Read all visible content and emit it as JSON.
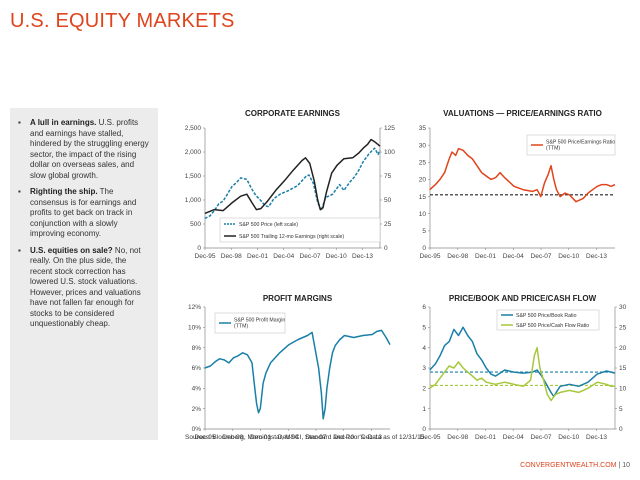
{
  "page": {
    "title": "U.S. EQUITY MARKETS",
    "source": "Sources: Bloomberg, Morningstar, MSCI, Standard and Poor's. Data as of 12/31/15.",
    "brand": "CONVERGENTWEALTH.COM",
    "page_number": "| 10"
  },
  "sidebar": {
    "bullets": [
      {
        "head": "A lull in earnings.",
        "body": " U.S. profits and earnings have stalled, hindered by the struggling energy sector, the impact of the rising dollar on overseas sales, and slow global growth."
      },
      {
        "head": "Righting the ship.",
        "body": " The consensus is for earnings and profits to get back on track in conjunction with a slowly improving economy."
      },
      {
        "head": "U.S. equities on sale?",
        "body": " No, not really. On the plus side, the recent stock correction has lowered U.S. stock valuations. However, prices and valuations have not fallen far enough for stocks to be considered unquestionably cheap."
      }
    ]
  },
  "colors": {
    "accent": "#e0441c",
    "blue": "#1a7fa8",
    "black": "#222222",
    "green": "#a6c83a"
  },
  "chart_data": [
    {
      "id": "corporate-earnings",
      "type": "line",
      "title": "CORPORATE EARNINGS",
      "x_labels": [
        "Dec-95",
        "Dec-98",
        "Dec-01",
        "Dec-04",
        "Dec-07",
        "Dec-10",
        "Dec-13"
      ],
      "x_range": [
        1995.92,
        2015.92
      ],
      "ylim": [
        0,
        2500
      ],
      "yticks": [
        "0",
        "500",
        "1,000",
        "1,500",
        "2,000",
        "2,500"
      ],
      "y2lim": [
        0,
        125
      ],
      "y2ticks": [
        "0",
        "25",
        "50",
        "75",
        "100",
        "125"
      ],
      "series": [
        {
          "name": "S&P 500 Price (left scale)",
          "axis": "left",
          "style": "dashed",
          "color": "#1a7fa8",
          "x": [
            1995.9,
            1996.5,
            1997.0,
            1997.5,
            1998.0,
            1998.5,
            1999.0,
            1999.5,
            2000.0,
            2000.7,
            2001.2,
            2001.7,
            2002.3,
            2002.8,
            2003.2,
            2003.8,
            2004.5,
            2005.5,
            2006.5,
            2007.5,
            2007.8,
            2008.3,
            2008.8,
            2009.2,
            2009.7,
            2010.5,
            2011.3,
            2011.8,
            2012.5,
            2013.0,
            2013.5,
            2014.0,
            2014.7,
            2015.3,
            2015.7,
            2015.92
          ],
          "y": [
            615,
            670,
            780,
            920,
            980,
            1130,
            1280,
            1360,
            1460,
            1430,
            1250,
            1100,
            990,
            880,
            860,
            1030,
            1120,
            1200,
            1300,
            1500,
            1520,
            1350,
            950,
            780,
            1050,
            1120,
            1320,
            1200,
            1380,
            1480,
            1620,
            1800,
            1970,
            2080,
            1950,
            2044
          ]
        },
        {
          "name": "S&P 500 Trailing 12-mo Earnings (right scale)",
          "axis": "right",
          "style": "solid",
          "color": "#222222",
          "x": [
            1995.9,
            1997.0,
            1998.0,
            1999.0,
            2000.0,
            2000.7,
            2001.3,
            2001.8,
            2002.3,
            2003.0,
            2004.0,
            2005.0,
            2006.0,
            2007.0,
            2007.4,
            2007.9,
            2008.4,
            2008.8,
            2009.1,
            2009.4,
            2009.8,
            2010.4,
            2011.0,
            2011.8,
            2012.8,
            2013.5,
            2014.0,
            2014.5,
            2014.9,
            2015.4,
            2015.92
          ],
          "y": [
            36,
            40,
            39,
            47,
            54,
            56,
            47,
            40,
            41,
            48,
            60,
            70,
            81,
            91,
            94,
            88,
            70,
            50,
            40,
            42,
            58,
            78,
            86,
            93,
            94,
            99,
            104,
            108,
            113,
            110,
            106
          ]
        }
      ],
      "legend": "bottom-center"
    },
    {
      "id": "valuations",
      "type": "line",
      "title": "VALUATIONS — PRICE/EARNINGS RATIO",
      "x_labels": [
        "Dec-95",
        "Dec-98",
        "Dec-01",
        "Dec-04",
        "Dec-07",
        "Dec-10",
        "Dec-13"
      ],
      "x_range": [
        1995.92,
        2015.92
      ],
      "ylim": [
        0,
        35
      ],
      "yticks": [
        "0",
        "5",
        "10",
        "15",
        "20",
        "25",
        "30",
        "35"
      ],
      "reference_line": {
        "value": 15.5,
        "style": "dashed",
        "color": "#222222"
      },
      "series": [
        {
          "name": "S&P 500 Price/Earnings Ratio (TTM)",
          "color": "#e0441c",
          "x": [
            1995.9,
            1996.5,
            1997.0,
            1997.5,
            1998.0,
            1998.3,
            1998.7,
            1999.0,
            1999.5,
            2000.0,
            2000.5,
            2001.0,
            2001.5,
            2002.0,
            2002.5,
            2003.0,
            2003.5,
            2004.0,
            2005.0,
            2006.0,
            2007.0,
            2007.5,
            2007.9,
            2008.3,
            2008.7,
            2009.0,
            2009.3,
            2009.6,
            2010.0,
            2010.5,
            2011.0,
            2011.7,
            2012.5,
            2013.0,
            2013.5,
            2014.0,
            2014.5,
            2015.0,
            2015.5,
            2015.92
          ],
          "y": [
            17,
            18.5,
            20,
            22,
            26,
            28,
            27,
            29,
            28.5,
            27,
            26,
            24,
            22,
            21,
            20,
            20.5,
            22,
            20.5,
            18,
            17,
            16.5,
            17,
            15,
            19,
            21.5,
            24,
            20,
            17,
            15,
            16,
            15.5,
            13.5,
            14.5,
            16,
            17,
            18,
            18.5,
            18.5,
            18,
            18.5
          ]
        }
      ],
      "legend": "top-right"
    },
    {
      "id": "profit-margins",
      "type": "line",
      "title": "PROFIT MARGINS",
      "x_labels": [
        "Dec-95",
        "Dec-98",
        "Dec-01",
        "Dec-04",
        "Dec-07",
        "Dec-10",
        "Dec-13"
      ],
      "x_range": [
        1995.92,
        2015.92
      ],
      "ylim": [
        0,
        12
      ],
      "yticks": [
        "0%",
        "2%",
        "4%",
        "6%",
        "8%",
        "10%",
        "12%"
      ],
      "series": [
        {
          "name": "S&P 500 Profit Margin (TTM)",
          "color": "#1a7fa8",
          "x": [
            1995.9,
            1996.5,
            1997.0,
            1997.5,
            1998.0,
            1998.5,
            1999.0,
            1999.5,
            2000.0,
            2000.5,
            2001.0,
            2001.3,
            2001.5,
            2001.7,
            2001.9,
            2002.2,
            2002.5,
            2003.0,
            2004.0,
            2005.0,
            2006.0,
            2007.0,
            2007.5,
            2007.8,
            2008.2,
            2008.5,
            2008.7,
            2008.9,
            2009.1,
            2009.4,
            2009.7,
            2010.0,
            2010.5,
            2011.0,
            2012.0,
            2013.0,
            2014.0,
            2014.5,
            2015.0,
            2015.5,
            2015.92
          ],
          "y": [
            6.0,
            6.2,
            6.6,
            6.9,
            6.8,
            6.5,
            7.0,
            7.2,
            7.5,
            7.3,
            6.5,
            4.0,
            2.5,
            1.6,
            2.0,
            4.5,
            5.5,
            6.5,
            7.5,
            8.3,
            8.8,
            9.2,
            9.5,
            8.0,
            6.0,
            3.5,
            1.0,
            2.0,
            4.0,
            6.0,
            7.5,
            8.2,
            8.8,
            9.2,
            9.0,
            9.2,
            9.3,
            9.6,
            9.7,
            9.0,
            8.3
          ]
        }
      ],
      "legend": "top-left"
    },
    {
      "id": "price-book-cashflow",
      "type": "line",
      "title": "PRICE/BOOK AND PRICE/CASH FLOW",
      "x_labels": [
        "Dec-95",
        "Dec-98",
        "Dec-01",
        "Dec-04",
        "Dec-07",
        "Dec-10",
        "Dec-13"
      ],
      "x_range": [
        1995.92,
        2015.92
      ],
      "ylim": [
        0,
        6
      ],
      "yticks": [
        "0",
        "1",
        "2",
        "3",
        "4",
        "5",
        "6"
      ],
      "y2lim": [
        0,
        30
      ],
      "y2ticks": [
        "0",
        "5",
        "10",
        "15",
        "20",
        "25",
        "30"
      ],
      "reference_lines": [
        {
          "value": 2.8,
          "axis": "left",
          "style": "dashed",
          "color": "#1a7fa8"
        },
        {
          "value": 10.7,
          "axis": "right",
          "style": "dashed",
          "color": "#a6c83a"
        }
      ],
      "series": [
        {
          "name": "S&P 500 Price/Book Ratio",
          "axis": "left",
          "color": "#1a7fa8",
          "x": [
            1995.9,
            1996.5,
            1997.0,
            1997.5,
            1998.0,
            1998.5,
            1999.0,
            1999.5,
            2000.0,
            2000.5,
            2001.0,
            2001.5,
            2002.0,
            2002.5,
            2003.0,
            2004.0,
            2005.0,
            2006.0,
            2007.0,
            2007.5,
            2008.0,
            2008.5,
            2009.0,
            2009.3,
            2009.7,
            2010.0,
            2011.0,
            2012.0,
            2013.0,
            2014.0,
            2015.0,
            2015.5,
            2015.92
          ],
          "y": [
            2.9,
            3.2,
            3.6,
            4.1,
            4.3,
            4.9,
            4.6,
            5.0,
            4.6,
            4.3,
            3.7,
            3.4,
            3.0,
            2.7,
            2.6,
            2.9,
            2.8,
            2.75,
            2.8,
            2.9,
            2.6,
            2.2,
            1.8,
            1.6,
            1.9,
            2.1,
            2.2,
            2.1,
            2.3,
            2.7,
            2.85,
            2.8,
            2.75
          ]
        },
        {
          "name": "S&P 500 Price/Cash Flow Ratio",
          "axis": "right",
          "color": "#a6c83a",
          "x": [
            1995.9,
            1996.5,
            1997.0,
            1997.5,
            1998.0,
            1998.5,
            1999.0,
            1999.5,
            2000.0,
            2000.5,
            2001.0,
            2001.5,
            2002.0,
            2003.0,
            2004.0,
            2005.0,
            2006.0,
            2006.8,
            2007.2,
            2007.5,
            2007.8,
            2008.2,
            2008.6,
            2009.0,
            2009.5,
            2010.0,
            2011.0,
            2012.0,
            2013.0,
            2014.0,
            2015.0,
            2015.5,
            2015.92
          ],
          "y": [
            10.0,
            11.0,
            12.5,
            14.0,
            15.5,
            15.0,
            16.5,
            15.0,
            14.0,
            13.0,
            12.0,
            12.5,
            11.5,
            11.0,
            11.5,
            11.0,
            10.5,
            12.0,
            18.0,
            20.0,
            15.0,
            12.0,
            8.5,
            7.0,
            8.5,
            9.0,
            9.5,
            9.0,
            10.0,
            11.5,
            11.0,
            10.5,
            10.5
          ]
        }
      ],
      "legend": "top-right"
    }
  ]
}
